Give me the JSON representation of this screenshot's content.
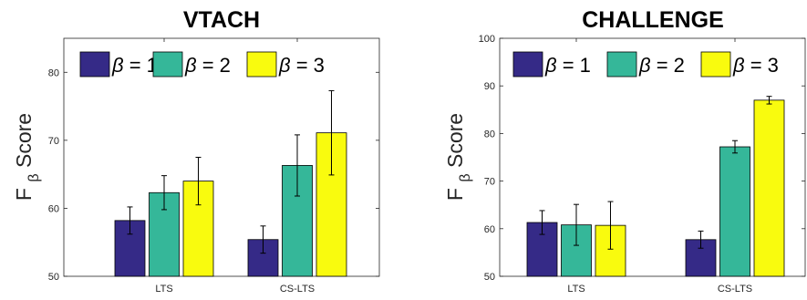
{
  "colors": {
    "beta1": "#352a87",
    "beta2": "#35b799",
    "beta3": "#f9fb0e"
  },
  "chart_data": [
    {
      "type": "bar",
      "title": "VTACH",
      "ylabel_main": "F",
      "ylabel_sub": "β",
      "ylabel_rest": "Score",
      "ylim": [
        50,
        85
      ],
      "yticks": [
        50,
        60,
        70,
        80
      ],
      "categories": [
        "LTS",
        "CS-LTS"
      ],
      "series": [
        {
          "name": "β = 1",
          "color_key": "beta1",
          "values": [
            58.2,
            55.4
          ],
          "err": [
            2.0,
            2.0
          ]
        },
        {
          "name": "β = 2",
          "color_key": "beta2",
          "values": [
            62.3,
            66.3
          ],
          "err": [
            2.5,
            4.5
          ]
        },
        {
          "name": "β = 3",
          "color_key": "beta3",
          "values": [
            64.0,
            71.1
          ],
          "err": [
            3.5,
            6.2
          ]
        }
      ],
      "legend_position": "top"
    },
    {
      "type": "bar",
      "title": "CHALLENGE",
      "ylabel_main": "F",
      "ylabel_sub": "β",
      "ylabel_rest": "Score",
      "ylim": [
        50,
        100
      ],
      "yticks": [
        50,
        60,
        70,
        80,
        90,
        100
      ],
      "categories": [
        "LTS",
        "CS-LTS"
      ],
      "series": [
        {
          "name": "β = 1",
          "color_key": "beta1",
          "values": [
            61.3,
            57.7
          ],
          "err": [
            2.5,
            1.8
          ]
        },
        {
          "name": "β = 2",
          "color_key": "beta2",
          "values": [
            60.8,
            77.2
          ],
          "err": [
            4.3,
            1.3
          ]
        },
        {
          "name": "β = 3",
          "color_key": "beta3",
          "values": [
            60.7,
            87.0
          ],
          "err": [
            5.0,
            0.8
          ]
        }
      ],
      "legend_position": "top"
    }
  ]
}
